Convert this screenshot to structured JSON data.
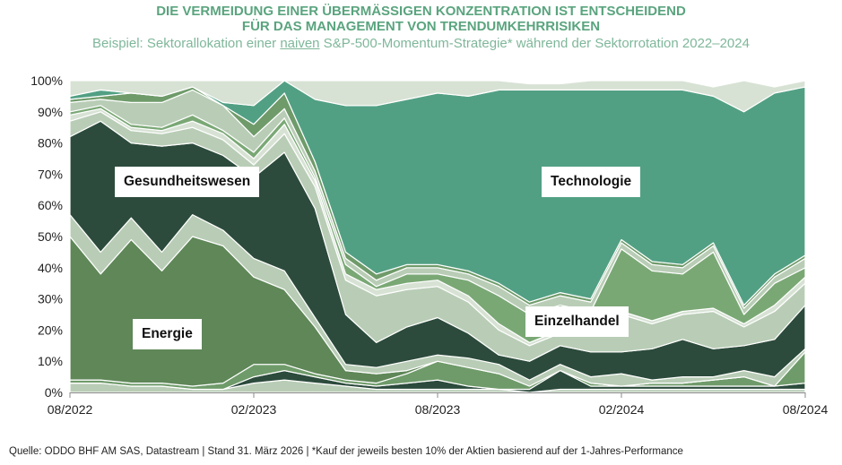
{
  "header": {
    "title_line1": "DIE VERMEIDUNG EINER ÜBERMÄSSIGEN KONZENTRATION IST ENTSCHEIDEND",
    "title_line2": "FÜR DAS MANAGEMENT VON TRENDUMKEHRRISIKEN",
    "subtitle_pre": "Beispiel: Sektorallokation einer ",
    "subtitle_u": "naiven",
    "subtitle_post": " S&P-500-Momentum-Strategie* während der Sektorrotation 2022–2024"
  },
  "footer": {
    "source": "Quelle: ODDO BHF AM SAS, Datastream | Stand 31. März 2026 | *Kauf der jeweils besten 10% der Aktien basierend auf der 1-Jahres-Performance"
  },
  "labels": {
    "gesundheit": "Gesundheitswesen",
    "technologie": "Technologie",
    "energie": "Energie",
    "einzelhandel": "Einzelhandel"
  },
  "colors": {
    "energie": "#5f8758",
    "gesundheit": "#2c4b3c",
    "technologie": "#52a084",
    "einzelhandel": "#7aa875",
    "light": "#b9cdb6",
    "lighter": "#d7e2d4",
    "separator": "#ffffff"
  },
  "chart_data": {
    "type": "area",
    "stacked": true,
    "ylim": [
      0,
      100
    ],
    "yticks": [
      "0%",
      "10%",
      "20%",
      "30%",
      "40%",
      "50%",
      "60%",
      "70%",
      "80%",
      "90%",
      "100%"
    ],
    "xtick_labels": [
      "08/2022",
      "02/2023",
      "08/2023",
      "02/2024",
      "08/2024"
    ],
    "xtick_index": [
      0,
      6,
      12,
      18,
      24
    ],
    "series": [
      {
        "key": "small1",
        "color": "light",
        "values": [
          3,
          3,
          2,
          2,
          1,
          1,
          3,
          4,
          3,
          2,
          1,
          1,
          1,
          1,
          1,
          0,
          1,
          1,
          1,
          1,
          1,
          1,
          1,
          1,
          1
        ]
      },
      {
        "key": "small2",
        "color": "dark",
        "values": [
          0,
          0,
          0,
          0,
          0,
          0,
          2,
          3,
          2,
          1,
          1,
          2,
          3,
          1,
          0,
          1,
          6,
          1,
          1,
          1,
          1,
          1,
          1,
          1,
          2
        ]
      },
      {
        "key": "small3",
        "color": "mid",
        "values": [
          1,
          1,
          1,
          1,
          1,
          2,
          4,
          2,
          1,
          1,
          1,
          3,
          6,
          6,
          5,
          1,
          0,
          1,
          0,
          1,
          1,
          2,
          3,
          0,
          10
        ]
      },
      {
        "name": "Energie",
        "key": "energie",
        "color": "energie",
        "values": [
          46,
          34,
          46,
          36,
          48,
          44,
          28,
          24,
          15,
          3,
          3,
          1,
          0,
          0,
          0,
          0,
          0,
          0,
          0,
          0,
          0,
          0,
          0,
          0,
          0
        ]
      },
      {
        "key": "small4",
        "color": "light",
        "values": [
          7,
          7,
          7,
          6,
          7,
          5,
          6,
          6,
          3,
          2,
          2,
          3,
          2,
          3,
          3,
          2,
          2,
          2,
          4,
          1,
          2,
          1,
          2,
          3,
          1
        ]
      },
      {
        "name": "Gesundheitswesen",
        "key": "gesundheit",
        "color": "gesundheit",
        "values": [
          25,
          42,
          24,
          34,
          23,
          24,
          26,
          38,
          35,
          16,
          8,
          11,
          12,
          8,
          3,
          6,
          6,
          8,
          7,
          10,
          12,
          9,
          8,
          12,
          14
        ]
      },
      {
        "key": "small5",
        "color": "light",
        "values": [
          5,
          3,
          4,
          4,
          5,
          5,
          4,
          6,
          7,
          11,
          15,
          12,
          10,
          10,
          8,
          5,
          4,
          6,
          12,
          8,
          8,
          12,
          6,
          9,
          7
        ]
      },
      {
        "key": "small6",
        "color": "lighter",
        "values": [
          2,
          1,
          1,
          1,
          2,
          2,
          2,
          3,
          2,
          2,
          2,
          2,
          2,
          2,
          2,
          1,
          1,
          1,
          1,
          1,
          1,
          1,
          1,
          2,
          2
        ]
      },
      {
        "name": "Einzelhandel",
        "key": "einzelhandel",
        "color": "einzelhandel",
        "values": [
          1,
          1,
          1,
          1,
          2,
          1,
          2,
          2,
          1,
          3,
          1,
          3,
          2,
          5,
          9,
          9,
          8,
          6,
          20,
          16,
          12,
          18,
          3,
          7,
          3
        ]
      },
      {
        "key": "small7",
        "color": "light",
        "values": [
          3,
          2,
          7,
          8,
          8,
          8,
          5,
          3,
          2,
          2,
          2,
          2,
          2,
          2,
          3,
          3,
          3,
          3,
          2,
          2,
          2,
          2,
          2,
          2,
          3
        ]
      },
      {
        "key": "small8",
        "color": "mid",
        "values": [
          1,
          1,
          3,
          2,
          1,
          0,
          4,
          5,
          3,
          2,
          2,
          1,
          1,
          1,
          1,
          1,
          1,
          1,
          1,
          1,
          1,
          1,
          1,
          1,
          1
        ]
      },
      {
        "name": "Technologie",
        "key": "technologie",
        "color": "technologie",
        "values": [
          1,
          2,
          0,
          0,
          0,
          1,
          6,
          4,
          20,
          47,
          54,
          53,
          55,
          56,
          62,
          68,
          65,
          67,
          48,
          55,
          56,
          47,
          62,
          58,
          54
        ]
      },
      {
        "key": "small9",
        "color": "lighter",
        "values": [
          5,
          3,
          4,
          5,
          2,
          7,
          8,
          0,
          6,
          8,
          8,
          6,
          4,
          5,
          3,
          2,
          2,
          3,
          3,
          3,
          3,
          3,
          10,
          2,
          3
        ]
      }
    ]
  }
}
